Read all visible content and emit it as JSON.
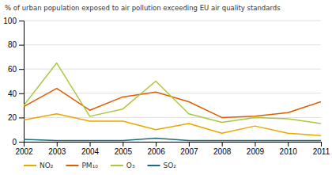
{
  "chart_data": {
    "type": "line",
    "title": "% of urban population exposed to air pollution exceeding EU air quality standards",
    "x": [
      2002,
      2003,
      2004,
      2005,
      2006,
      2007,
      2008,
      2009,
      2010,
      2011
    ],
    "series": [
      {
        "name": "NO₂",
        "color": "#e8a800",
        "values": [
          18,
          23,
          17,
          17,
          10,
          15,
          7,
          13,
          7,
          5
        ]
      },
      {
        "name": "PM₁₀",
        "color": "#e05c00",
        "values": [
          29,
          44,
          26,
          37,
          41,
          33,
          20,
          21,
          24,
          33
        ]
      },
      {
        "name": "O₃",
        "color": "#aac83c",
        "values": [
          30,
          65,
          21,
          27,
          50,
          23,
          16,
          20,
          19,
          15
        ]
      },
      {
        "name": "SO₂",
        "color": "#1c6b7a",
        "values": [
          2,
          1,
          1,
          1,
          3,
          1,
          1,
          1,
          1,
          1
        ]
      }
    ],
    "xlim": [
      2002,
      2011
    ],
    "xticks": [
      2002,
      2003,
      2004,
      2005,
      2006,
      2007,
      2008,
      2009,
      2010,
      2011
    ],
    "ylim": [
      0,
      100
    ],
    "yticks": [
      0,
      20,
      40,
      60,
      80,
      100
    ],
    "grid": true,
    "legend": "bottom"
  }
}
